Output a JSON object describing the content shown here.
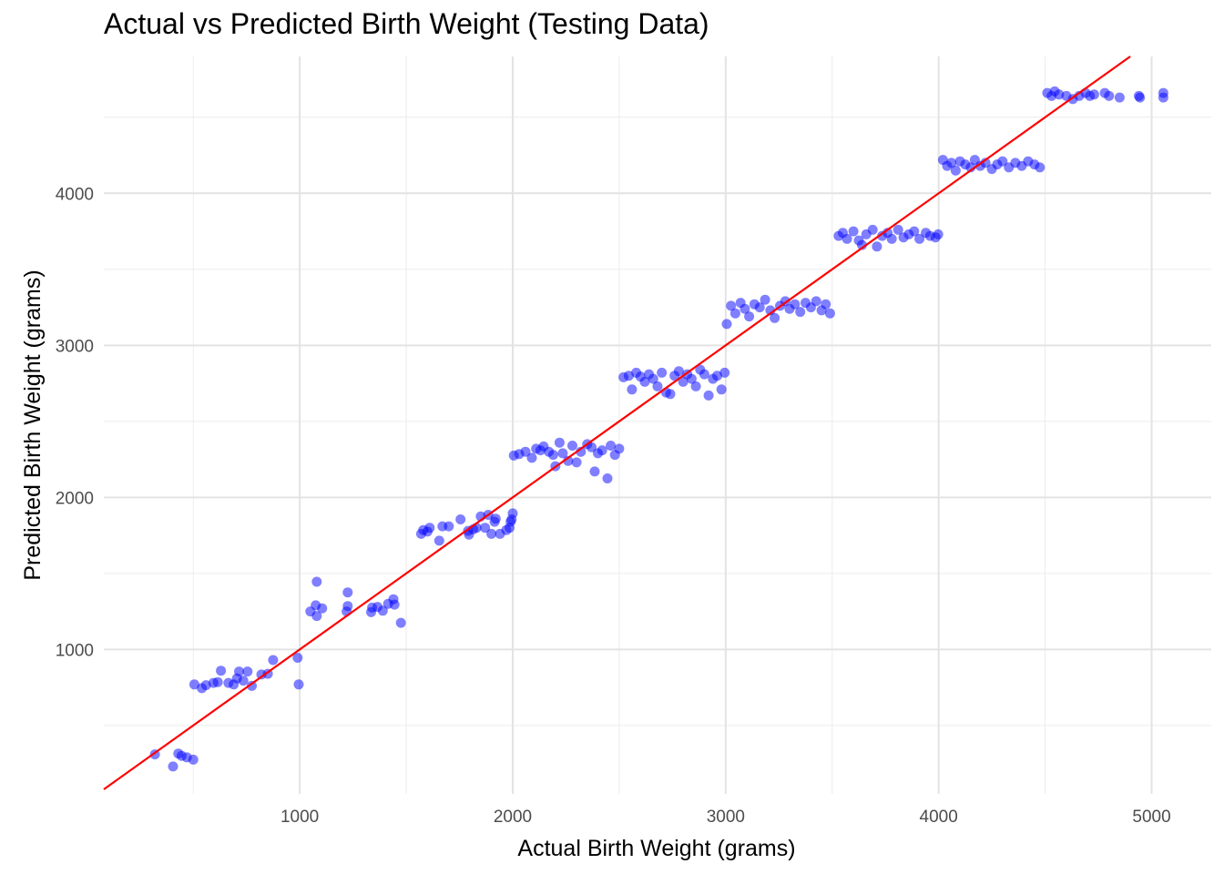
{
  "chart_data": {
    "type": "scatter",
    "title": "Actual vs Predicted Birth Weight (Testing Data)",
    "xlabel": "Actual Birth Weight (grams)",
    "ylabel": "Predicted Birth Weight (grams)",
    "xlim": [
      80,
      5280
    ],
    "ylim": [
      50,
      4900
    ],
    "x_ticks": [
      1000,
      2000,
      3000,
      4000,
      5000
    ],
    "y_ticks": [
      1000,
      2000,
      3000,
      4000
    ],
    "grid": true,
    "point_color": "#0000ff",
    "point_opacity": 0.5,
    "reference_line": {
      "color": "#ff0000",
      "slope": 1,
      "intercept": 0
    },
    "series": [
      {
        "points": [
          [
            320,
            310
          ],
          [
            405,
            230
          ],
          [
            430,
            315
          ],
          [
            445,
            300
          ],
          [
            470,
            290
          ],
          [
            500,
            275
          ],
          [
            505,
            770
          ],
          [
            540,
            745
          ],
          [
            560,
            765
          ],
          [
            595,
            780
          ],
          [
            615,
            785
          ],
          [
            630,
            860
          ],
          [
            665,
            780
          ],
          [
            690,
            770
          ],
          [
            705,
            810
          ],
          [
            715,
            855
          ],
          [
            735,
            795
          ],
          [
            755,
            855
          ],
          [
            775,
            760
          ],
          [
            820,
            835
          ],
          [
            850,
            840
          ],
          [
            875,
            930
          ],
          [
            990,
            945
          ],
          [
            995,
            770
          ],
          [
            1050,
            1250
          ],
          [
            1075,
            1290
          ],
          [
            1080,
            1220
          ],
          [
            1080,
            1445
          ],
          [
            1105,
            1270
          ],
          [
            1220,
            1250
          ],
          [
            1225,
            1285
          ],
          [
            1225,
            1375
          ],
          [
            1335,
            1245
          ],
          [
            1340,
            1275
          ],
          [
            1365,
            1280
          ],
          [
            1390,
            1255
          ],
          [
            1415,
            1300
          ],
          [
            1440,
            1330
          ],
          [
            1445,
            1295
          ],
          [
            1475,
            1175
          ],
          [
            1570,
            1760
          ],
          [
            1580,
            1785
          ],
          [
            1600,
            1775
          ],
          [
            1610,
            1800
          ],
          [
            1655,
            1715
          ],
          [
            1670,
            1810
          ],
          [
            1700,
            1810
          ],
          [
            1755,
            1855
          ],
          [
            1790,
            1780
          ],
          [
            1795,
            1755
          ],
          [
            1815,
            1790
          ],
          [
            1830,
            1800
          ],
          [
            1850,
            1875
          ],
          [
            1870,
            1800
          ],
          [
            1885,
            1885
          ],
          [
            1900,
            1760
          ],
          [
            1915,
            1840
          ],
          [
            1920,
            1860
          ],
          [
            1940,
            1760
          ],
          [
            1970,
            1785
          ],
          [
            1985,
            1800
          ],
          [
            1990,
            1840
          ],
          [
            1995,
            1855
          ],
          [
            2000,
            1895
          ],
          [
            2005,
            2275
          ],
          [
            2030,
            2285
          ],
          [
            2060,
            2300
          ],
          [
            2090,
            2260
          ],
          [
            2110,
            2320
          ],
          [
            2130,
            2310
          ],
          [
            2145,
            2335
          ],
          [
            2170,
            2300
          ],
          [
            2190,
            2280
          ],
          [
            2200,
            2205
          ],
          [
            2220,
            2360
          ],
          [
            2235,
            2290
          ],
          [
            2260,
            2240
          ],
          [
            2280,
            2340
          ],
          [
            2300,
            2230
          ],
          [
            2320,
            2300
          ],
          [
            2350,
            2350
          ],
          [
            2370,
            2330
          ],
          [
            2385,
            2170
          ],
          [
            2400,
            2290
          ],
          [
            2420,
            2310
          ],
          [
            2445,
            2125
          ],
          [
            2460,
            2340
          ],
          [
            2480,
            2280
          ],
          [
            2500,
            2320
          ],
          [
            2520,
            2790
          ],
          [
            2545,
            2800
          ],
          [
            2560,
            2710
          ],
          [
            2580,
            2820
          ],
          [
            2600,
            2795
          ],
          [
            2620,
            2760
          ],
          [
            2640,
            2810
          ],
          [
            2660,
            2780
          ],
          [
            2680,
            2730
          ],
          [
            2700,
            2820
          ],
          [
            2720,
            2690
          ],
          [
            2740,
            2680
          ],
          [
            2760,
            2800
          ],
          [
            2780,
            2830
          ],
          [
            2800,
            2760
          ],
          [
            2820,
            2810
          ],
          [
            2840,
            2780
          ],
          [
            2860,
            2730
          ],
          [
            2880,
            2840
          ],
          [
            2900,
            2810
          ],
          [
            2920,
            2670
          ],
          [
            2940,
            2780
          ],
          [
            2960,
            2800
          ],
          [
            2980,
            2710
          ],
          [
            2995,
            2820
          ],
          [
            3005,
            3140
          ],
          [
            3025,
            3260
          ],
          [
            3045,
            3210
          ],
          [
            3070,
            3280
          ],
          [
            3090,
            3240
          ],
          [
            3110,
            3190
          ],
          [
            3135,
            3270
          ],
          [
            3160,
            3250
          ],
          [
            3185,
            3300
          ],
          [
            3210,
            3230
          ],
          [
            3230,
            3180
          ],
          [
            3255,
            3260
          ],
          [
            3280,
            3290
          ],
          [
            3300,
            3240
          ],
          [
            3325,
            3270
          ],
          [
            3350,
            3220
          ],
          [
            3375,
            3280
          ],
          [
            3400,
            3250
          ],
          [
            3425,
            3290
          ],
          [
            3450,
            3230
          ],
          [
            3470,
            3270
          ],
          [
            3490,
            3210
          ],
          [
            3530,
            3720
          ],
          [
            3550,
            3740
          ],
          [
            3570,
            3700
          ],
          [
            3600,
            3750
          ],
          [
            3625,
            3690
          ],
          [
            3640,
            3660
          ],
          [
            3660,
            3730
          ],
          [
            3690,
            3760
          ],
          [
            3710,
            3650
          ],
          [
            3735,
            3720
          ],
          [
            3760,
            3740
          ],
          [
            3780,
            3700
          ],
          [
            3810,
            3760
          ],
          [
            3835,
            3710
          ],
          [
            3860,
            3730
          ],
          [
            3885,
            3750
          ],
          [
            3910,
            3700
          ],
          [
            3940,
            3740
          ],
          [
            3960,
            3720
          ],
          [
            3985,
            3710
          ],
          [
            3998,
            3730
          ],
          [
            4020,
            4220
          ],
          [
            4040,
            4180
          ],
          [
            4060,
            4200
          ],
          [
            4080,
            4150
          ],
          [
            4100,
            4210
          ],
          [
            4125,
            4190
          ],
          [
            4150,
            4170
          ],
          [
            4170,
            4220
          ],
          [
            4195,
            4180
          ],
          [
            4220,
            4200
          ],
          [
            4250,
            4160
          ],
          [
            4275,
            4190
          ],
          [
            4300,
            4210
          ],
          [
            4330,
            4170
          ],
          [
            4360,
            4200
          ],
          [
            4390,
            4180
          ],
          [
            4420,
            4210
          ],
          [
            4450,
            4190
          ],
          [
            4475,
            4170
          ],
          [
            4510,
            4660
          ],
          [
            4530,
            4640
          ],
          [
            4545,
            4670
          ],
          [
            4565,
            4650
          ],
          [
            4600,
            4640
          ],
          [
            4630,
            4620
          ],
          [
            4660,
            4640
          ],
          [
            4690,
            4660
          ],
          [
            4710,
            4640
          ],
          [
            4730,
            4650
          ],
          [
            4780,
            4660
          ],
          [
            4800,
            4640
          ],
          [
            4850,
            4630
          ],
          [
            4940,
            4640
          ],
          [
            4945,
            4630
          ],
          [
            5055,
            4660
          ],
          [
            5055,
            4630
          ]
        ]
      }
    ]
  }
}
